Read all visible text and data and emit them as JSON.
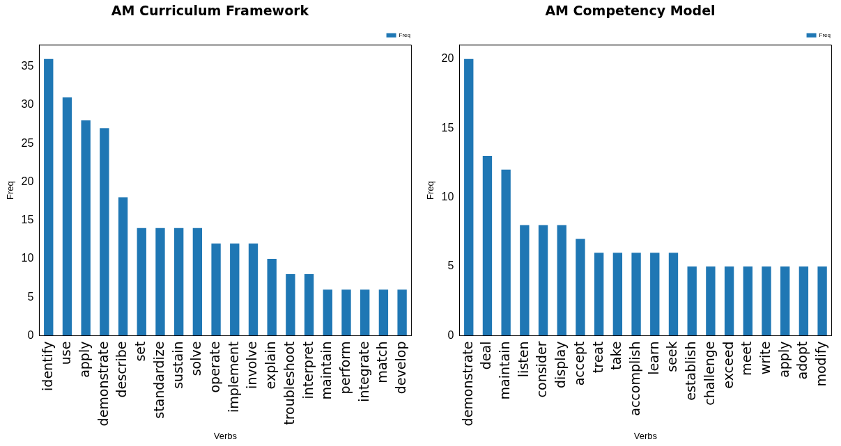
{
  "chart_data": [
    {
      "type": "bar",
      "title": "AM Curriculum Framework",
      "xlabel": "Verbs",
      "ylabel": "Freq",
      "categories": [
        "identify",
        "use",
        "apply",
        "demonstrate",
        "describe",
        "set",
        "standardize",
        "sustain",
        "solve",
        "operate",
        "implement",
        "involve",
        "explain",
        "troubleshoot",
        "interpret",
        "maintain",
        "perform",
        "integrate",
        "match",
        "develop"
      ],
      "series": [
        {
          "name": "Freq",
          "color": "#1f77b4",
          "values": [
            36,
            31,
            28,
            27,
            18,
            14,
            14,
            14,
            14,
            12,
            12,
            12,
            10,
            8,
            8,
            6,
            6,
            6,
            6,
            6
          ]
        }
      ],
      "ylim": [
        0,
        37.8
      ],
      "yticks": [
        0,
        5,
        10,
        15,
        20,
        25,
        30,
        35
      ],
      "grid": false,
      "legend": "top right"
    },
    {
      "type": "bar",
      "title": "AM Competency Model",
      "xlabel": "Verbs",
      "ylabel": "Freq",
      "categories": [
        "demonstrate",
        "deal",
        "maintain",
        "listen",
        "consider",
        "display",
        "accept",
        "treat",
        "take",
        "accomplish",
        "learn",
        "seek",
        "establish",
        "challenge",
        "exceed",
        "meet",
        "write",
        "apply",
        "adopt",
        "modify"
      ],
      "series": [
        {
          "name": "Freq",
          "color": "#1f77b4",
          "values": [
            20,
            13,
            12,
            8,
            8,
            8,
            7,
            6,
            6,
            6,
            6,
            6,
            5,
            5,
            5,
            5,
            5,
            5,
            5,
            5
          ]
        }
      ],
      "ylim": [
        0,
        21
      ],
      "yticks": [
        0,
        5,
        10,
        15,
        20
      ],
      "grid": false,
      "legend": "top right"
    }
  ]
}
